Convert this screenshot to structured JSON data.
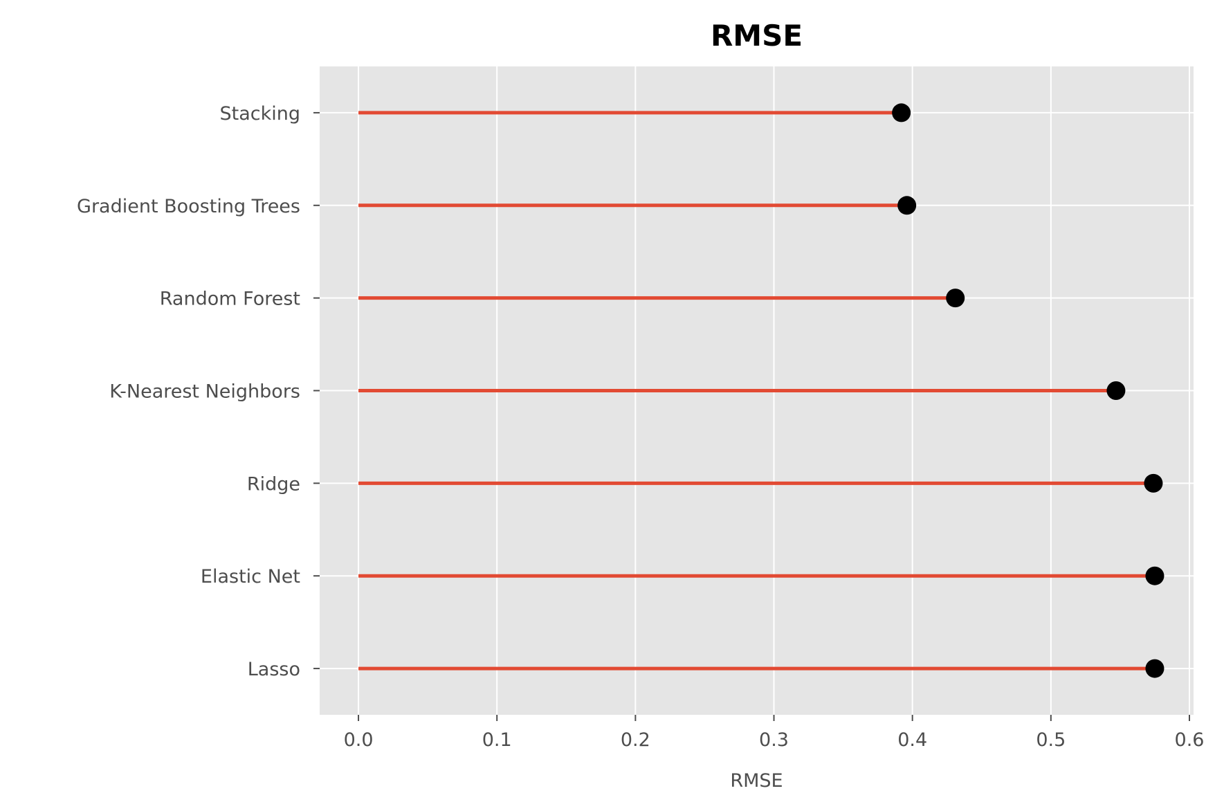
{
  "chart_data": {
    "type": "lollipop",
    "title": "RMSE",
    "xlabel": "RMSE",
    "ylabel": "",
    "orientation": "horizontal",
    "xlim": [
      -0.028,
      0.603
    ],
    "xticks": [
      0.0,
      0.1,
      0.2,
      0.3,
      0.4,
      0.5,
      0.6
    ],
    "xtick_labels": [
      "0.0",
      "0.1",
      "0.2",
      "0.3",
      "0.4",
      "0.5",
      "0.6"
    ],
    "categories": [
      "Stacking",
      "Gradient Boosting Trees",
      "Random Forest",
      "K-Nearest Neighbors",
      "Ridge",
      "Elastic Net",
      "Lasso"
    ],
    "values": [
      0.392,
      0.396,
      0.431,
      0.547,
      0.574,
      0.575,
      0.575
    ],
    "grid": true,
    "legend": "none",
    "colors": {
      "stem": "#E24A33",
      "marker": "#000000",
      "plot_background": "#E5E5E5",
      "grid": "#FFFFFF",
      "tick_text": "#4D4D4D"
    }
  }
}
